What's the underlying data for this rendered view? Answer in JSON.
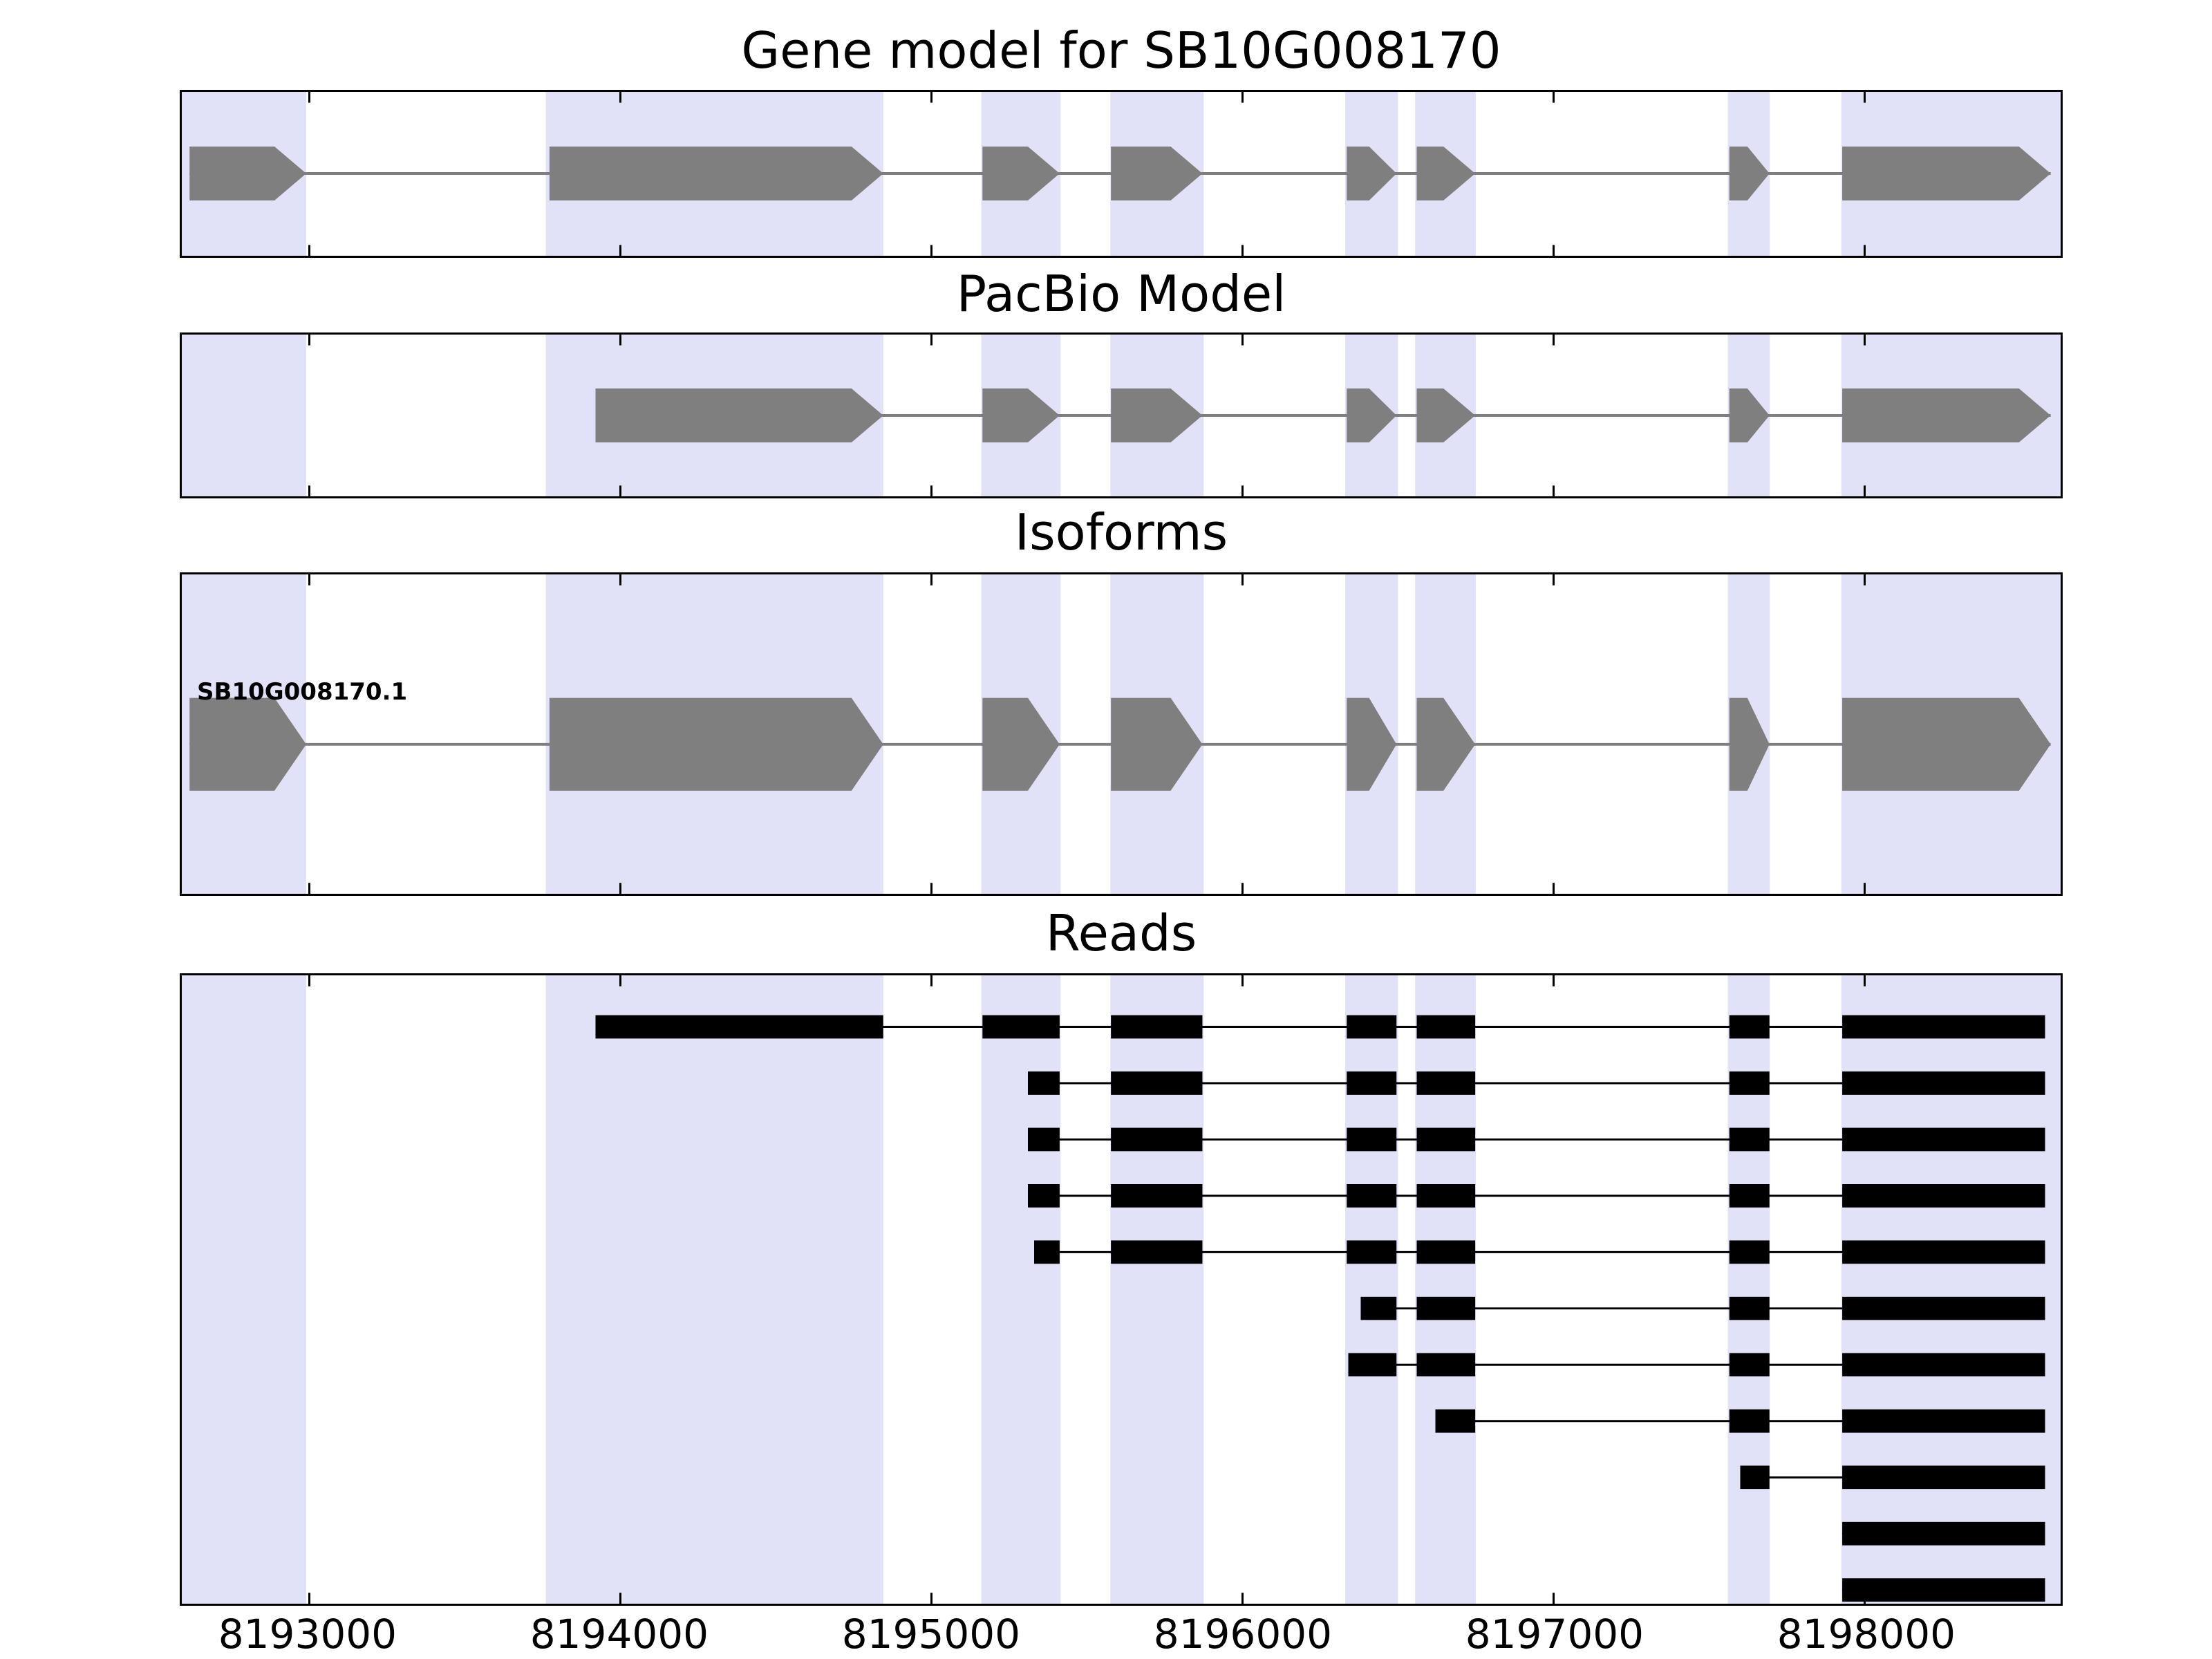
{
  "chart_data": {
    "type": "gene-model-tracks",
    "title": "Gene model for SB10G008170",
    "xlabel": "",
    "ylabel": "",
    "x_domain": [
      8192590,
      8198630
    ],
    "x_ticks": [
      8193000,
      8194000,
      8195000,
      8196000,
      8197000,
      8198000
    ],
    "x_tick_labels": [
      "8193000",
      "8194000",
      "8195000",
      "8196000",
      "8197000",
      "8198000"
    ],
    "colors": {
      "band": "#e1e1f8",
      "exon": "#7f7f7f",
      "intron": "#7f7f7f",
      "read": "#000000",
      "axis": "#000000",
      "background": "#ffffff"
    },
    "highlight_bands": [
      [
        8192590,
        8192990
      ],
      [
        8193760,
        8194845
      ],
      [
        8195160,
        8195415
      ],
      [
        8195575,
        8195875
      ],
      [
        8196330,
        8196500
      ],
      [
        8196555,
        8196750
      ],
      [
        8197560,
        8197695
      ],
      [
        8197925,
        8198630
      ]
    ],
    "panels": [
      {
        "id": "gene-model",
        "title": "Gene model for SB10G008170",
        "kind": "model",
        "strand": "+",
        "exons": [
          [
            8192615,
            8192990
          ],
          [
            8193772,
            8194845
          ],
          [
            8195164,
            8195412
          ],
          [
            8195577,
            8195871
          ],
          [
            8196335,
            8196495
          ],
          [
            8196560,
            8196748
          ],
          [
            8197565,
            8197694
          ],
          [
            8197928,
            8198598
          ]
        ]
      },
      {
        "id": "pacbio-model",
        "title": "PacBio Model",
        "kind": "model",
        "strand": "+",
        "exons": [
          [
            8193920,
            8194845
          ],
          [
            8195164,
            8195412
          ],
          [
            8195577,
            8195871
          ],
          [
            8196335,
            8196495
          ],
          [
            8196560,
            8196748
          ],
          [
            8197565,
            8197694
          ],
          [
            8197928,
            8198598
          ]
        ]
      },
      {
        "id": "isoforms",
        "title": "Isoforms",
        "kind": "model",
        "strand": "+",
        "isoform_label": "SB10G008170.1",
        "exons": [
          [
            8192615,
            8192990
          ],
          [
            8193772,
            8194845
          ],
          [
            8195164,
            8195412
          ],
          [
            8195577,
            8195871
          ],
          [
            8196335,
            8196495
          ],
          [
            8196560,
            8196748
          ],
          [
            8197565,
            8197694
          ],
          [
            8197928,
            8198598
          ]
        ]
      },
      {
        "id": "reads",
        "title": "Reads",
        "kind": "reads",
        "reads": [
          [
            [
              8193920,
              8194845
            ],
            [
              8195164,
              8195412
            ],
            [
              8195577,
              8195871
            ],
            [
              8196335,
              8196495
            ],
            [
              8196560,
              8196748
            ],
            [
              8197565,
              8197694
            ],
            [
              8197928,
              8198580
            ]
          ],
          [
            [
              8195310,
              8195412
            ],
            [
              8195577,
              8195871
            ],
            [
              8196335,
              8196495
            ],
            [
              8196560,
              8196748
            ],
            [
              8197565,
              8197694
            ],
            [
              8197928,
              8198580
            ]
          ],
          [
            [
              8195310,
              8195412
            ],
            [
              8195577,
              8195871
            ],
            [
              8196335,
              8196495
            ],
            [
              8196560,
              8196748
            ],
            [
              8197565,
              8197694
            ],
            [
              8197928,
              8198580
            ]
          ],
          [
            [
              8195310,
              8195412
            ],
            [
              8195577,
              8195871
            ],
            [
              8196335,
              8196495
            ],
            [
              8196560,
              8196748
            ],
            [
              8197565,
              8197694
            ],
            [
              8197928,
              8198580
            ]
          ],
          [
            [
              8195330,
              8195412
            ],
            [
              8195577,
              8195871
            ],
            [
              8196335,
              8196495
            ],
            [
              8196560,
              8196748
            ],
            [
              8197565,
              8197694
            ],
            [
              8197928,
              8198580
            ]
          ],
          [
            [
              8196380,
              8196495
            ],
            [
              8196560,
              8196748
            ],
            [
              8197565,
              8197694
            ],
            [
              8197928,
              8198580
            ]
          ],
          [
            [
              8196340,
              8196495
            ],
            [
              8196560,
              8196748
            ],
            [
              8197565,
              8197694
            ],
            [
              8197928,
              8198580
            ]
          ],
          [
            [
              8196620,
              8196748
            ],
            [
              8197565,
              8197694
            ],
            [
              8197928,
              8198580
            ]
          ],
          [
            [
              8197600,
              8197694
            ],
            [
              8197928,
              8198580
            ]
          ],
          [
            [
              8197928,
              8198580
            ]
          ],
          [
            [
              8197928,
              8198580
            ]
          ]
        ]
      }
    ]
  }
}
